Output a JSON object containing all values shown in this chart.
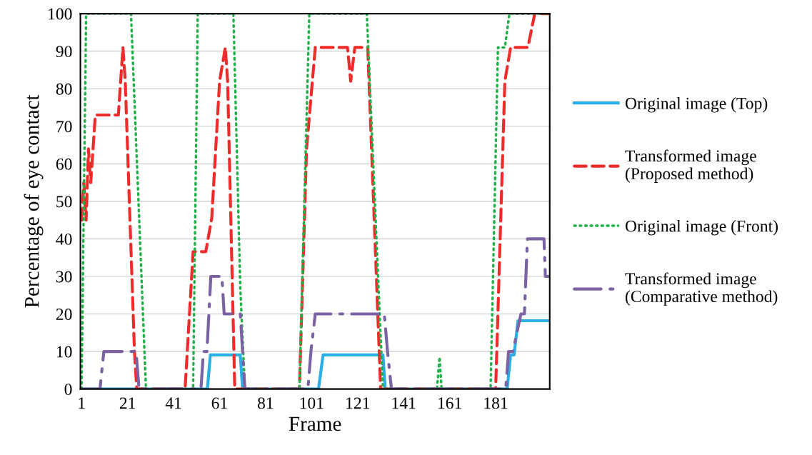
{
  "chart_data": {
    "type": "line",
    "xlabel": "Frame",
    "ylabel": "Percentage of eye contact",
    "xlim": [
      0.5,
      204.5
    ],
    "xticks": [
      1,
      21,
      41,
      61,
      81,
      101,
      121,
      141,
      161,
      181
    ],
    "ylim": [
      0,
      100
    ],
    "yticks": [
      0,
      10,
      20,
      30,
      40,
      50,
      60,
      70,
      80,
      90,
      100
    ],
    "grid": "y",
    "legend": "right",
    "marker": "none",
    "series": [
      {
        "name": "Original image (Top)",
        "color": "#29aee6",
        "line_style": "solid",
        "x": [
          1,
          55.7,
          57,
          70,
          71,
          104,
          106,
          132,
          133,
          186,
          187.5,
          189,
          190.7,
          204
        ],
        "values": [
          0,
          0,
          9.1,
          9.1,
          0,
          0,
          9.1,
          9.1,
          0,
          0,
          9.1,
          9.1,
          18.2,
          18.2
        ]
      },
      {
        "name": "Transformed image\n(Proposed method)",
        "color": "#ee2c2c",
        "line_style": "dashed",
        "x": [
          1,
          2,
          3,
          4,
          5,
          6,
          7,
          17,
          19,
          20,
          24,
          25,
          46,
          49.5,
          55,
          57.6,
          61,
          63.5,
          64.5,
          67.6,
          95.7,
          98.8,
          102.6,
          116.6,
          118,
          119.8,
          125.4,
          131,
          181,
          185,
          187.5,
          195,
          198,
          204
        ],
        "values": [
          45,
          55,
          45,
          64,
          55,
          64,
          73,
          73,
          91,
          82,
          10,
          0,
          0,
          36.6,
          36.6,
          45.5,
          82,
          91,
          82,
          0,
          0,
          64,
          91,
          91,
          82,
          91,
          91,
          0,
          0,
          82,
          91,
          91,
          100,
          100
        ]
      },
      {
        "name": "Original image (Front)",
        "color": "#22b04a",
        "line_style": "dotted",
        "x": [
          1,
          3,
          22.5,
          29,
          49.5,
          51.5,
          67,
          70,
          72,
          95.7,
          100,
          125,
          132,
          155.5,
          156.6,
          157.5,
          178.8,
          182,
          185,
          187,
          204
        ],
        "values": [
          0,
          100,
          100,
          0,
          0,
          100,
          100,
          27,
          0,
          0,
          100,
          100,
          0,
          0,
          8.5,
          0,
          0,
          91,
          91,
          100,
          100
        ]
      },
      {
        "name": "Transformed image\n(Comparative method)",
        "color": "#7b62a3",
        "line_style": "dashdot",
        "x": [
          1,
          9,
          10.7,
          24.7,
          26,
          52.9,
          54,
          55.5,
          57.2,
          62,
          63,
          70,
          72,
          99.4,
          100.7,
          102.6,
          132.6,
          134,
          135.7,
          185.4,
          186.6,
          188.5,
          192,
          193.5,
          194.8,
          202,
          202.6,
          204
        ],
        "values": [
          0,
          0,
          10,
          10,
          0,
          0,
          10,
          10,
          30,
          30,
          20,
          20,
          0,
          0,
          10,
          20,
          20,
          10,
          0,
          0,
          10,
          10,
          20,
          20,
          40,
          40,
          30,
          30
        ]
      }
    ]
  }
}
